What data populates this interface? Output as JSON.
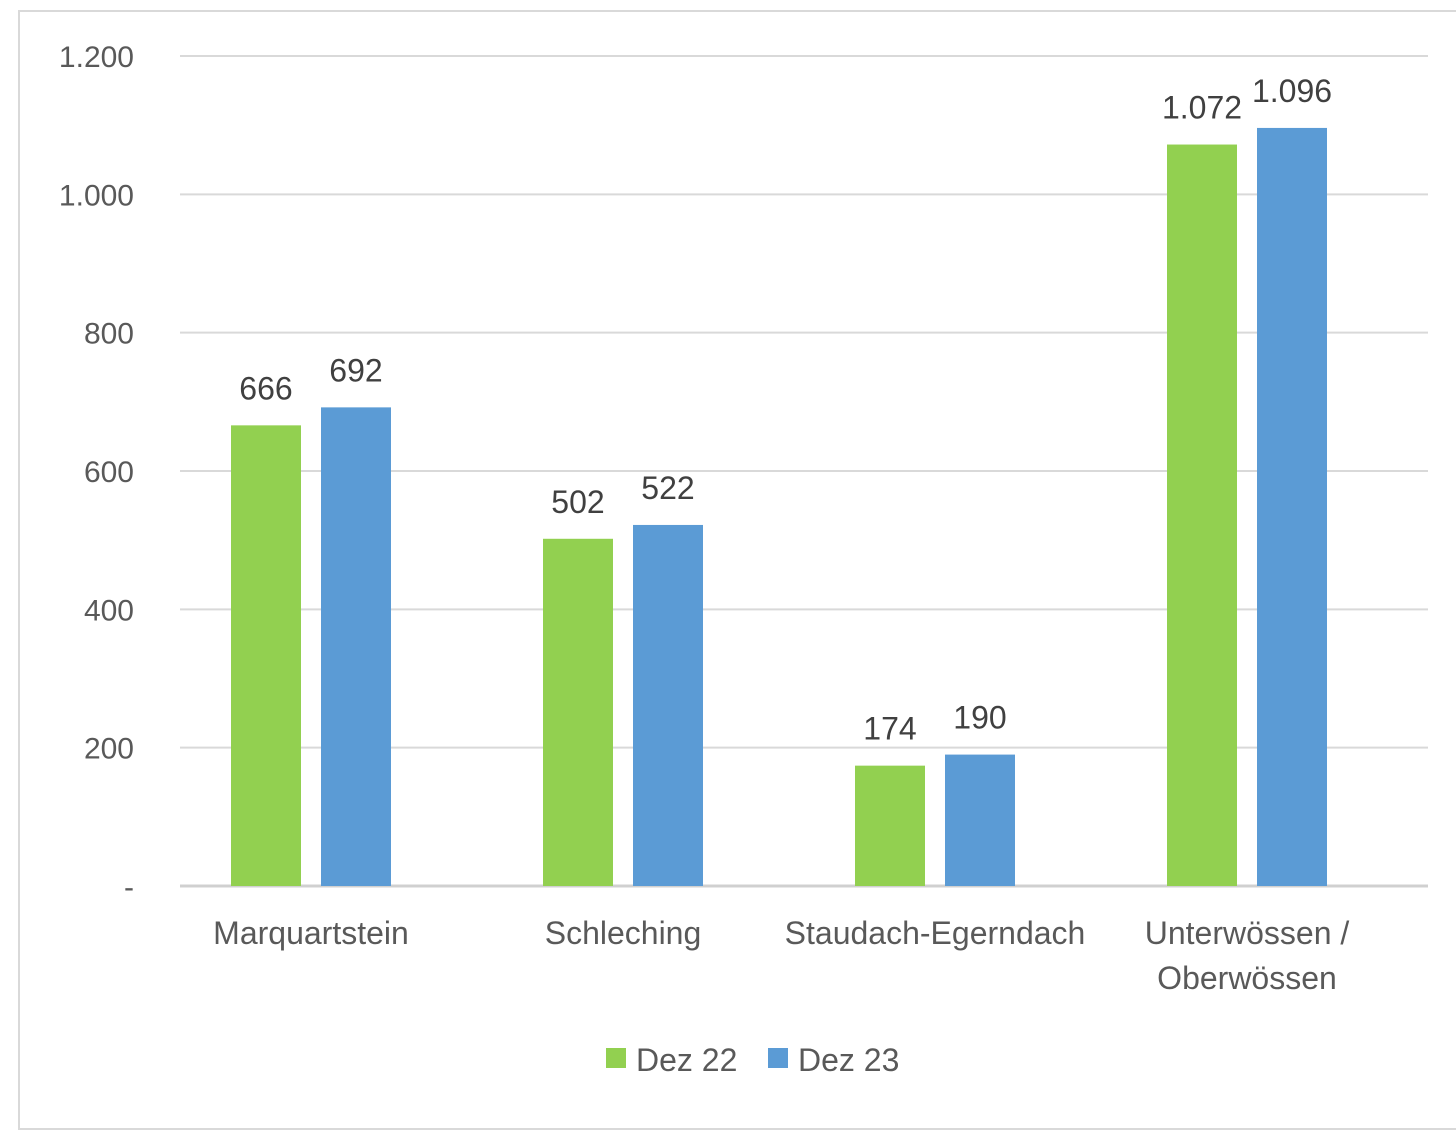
{
  "chart_data": {
    "type": "bar",
    "categories": [
      "Marquartstein",
      "Schleching",
      "Staudach-Egerndach",
      "Unterwössen / Oberwössen"
    ],
    "category_lines": [
      [
        "Marquartstein"
      ],
      [
        "Schleching"
      ],
      [
        "Staudach-Egerndach"
      ],
      [
        "Unterwössen /",
        "Oberwössen"
      ]
    ],
    "series": [
      {
        "name": "Dez 22",
        "color": "#92d050",
        "values": [
          666,
          502,
          174,
          1072
        ],
        "labels": [
          "666",
          "502",
          "174",
          "1.072"
        ]
      },
      {
        "name": "Dez 23",
        "color": "#5b9bd5",
        "values": [
          692,
          522,
          190,
          1096
        ],
        "labels": [
          "692",
          "522",
          "190",
          "1.096"
        ]
      }
    ],
    "ylim": [
      0,
      1200
    ],
    "yticks": [
      0,
      200,
      400,
      600,
      800,
      1000,
      1200
    ],
    "ytick_labels": [
      "-",
      "200",
      "400",
      "600",
      "800",
      "1.000",
      "1.200"
    ],
    "grid": true,
    "legend_position": "bottom",
    "title": "",
    "xlabel": "",
    "ylabel": ""
  }
}
